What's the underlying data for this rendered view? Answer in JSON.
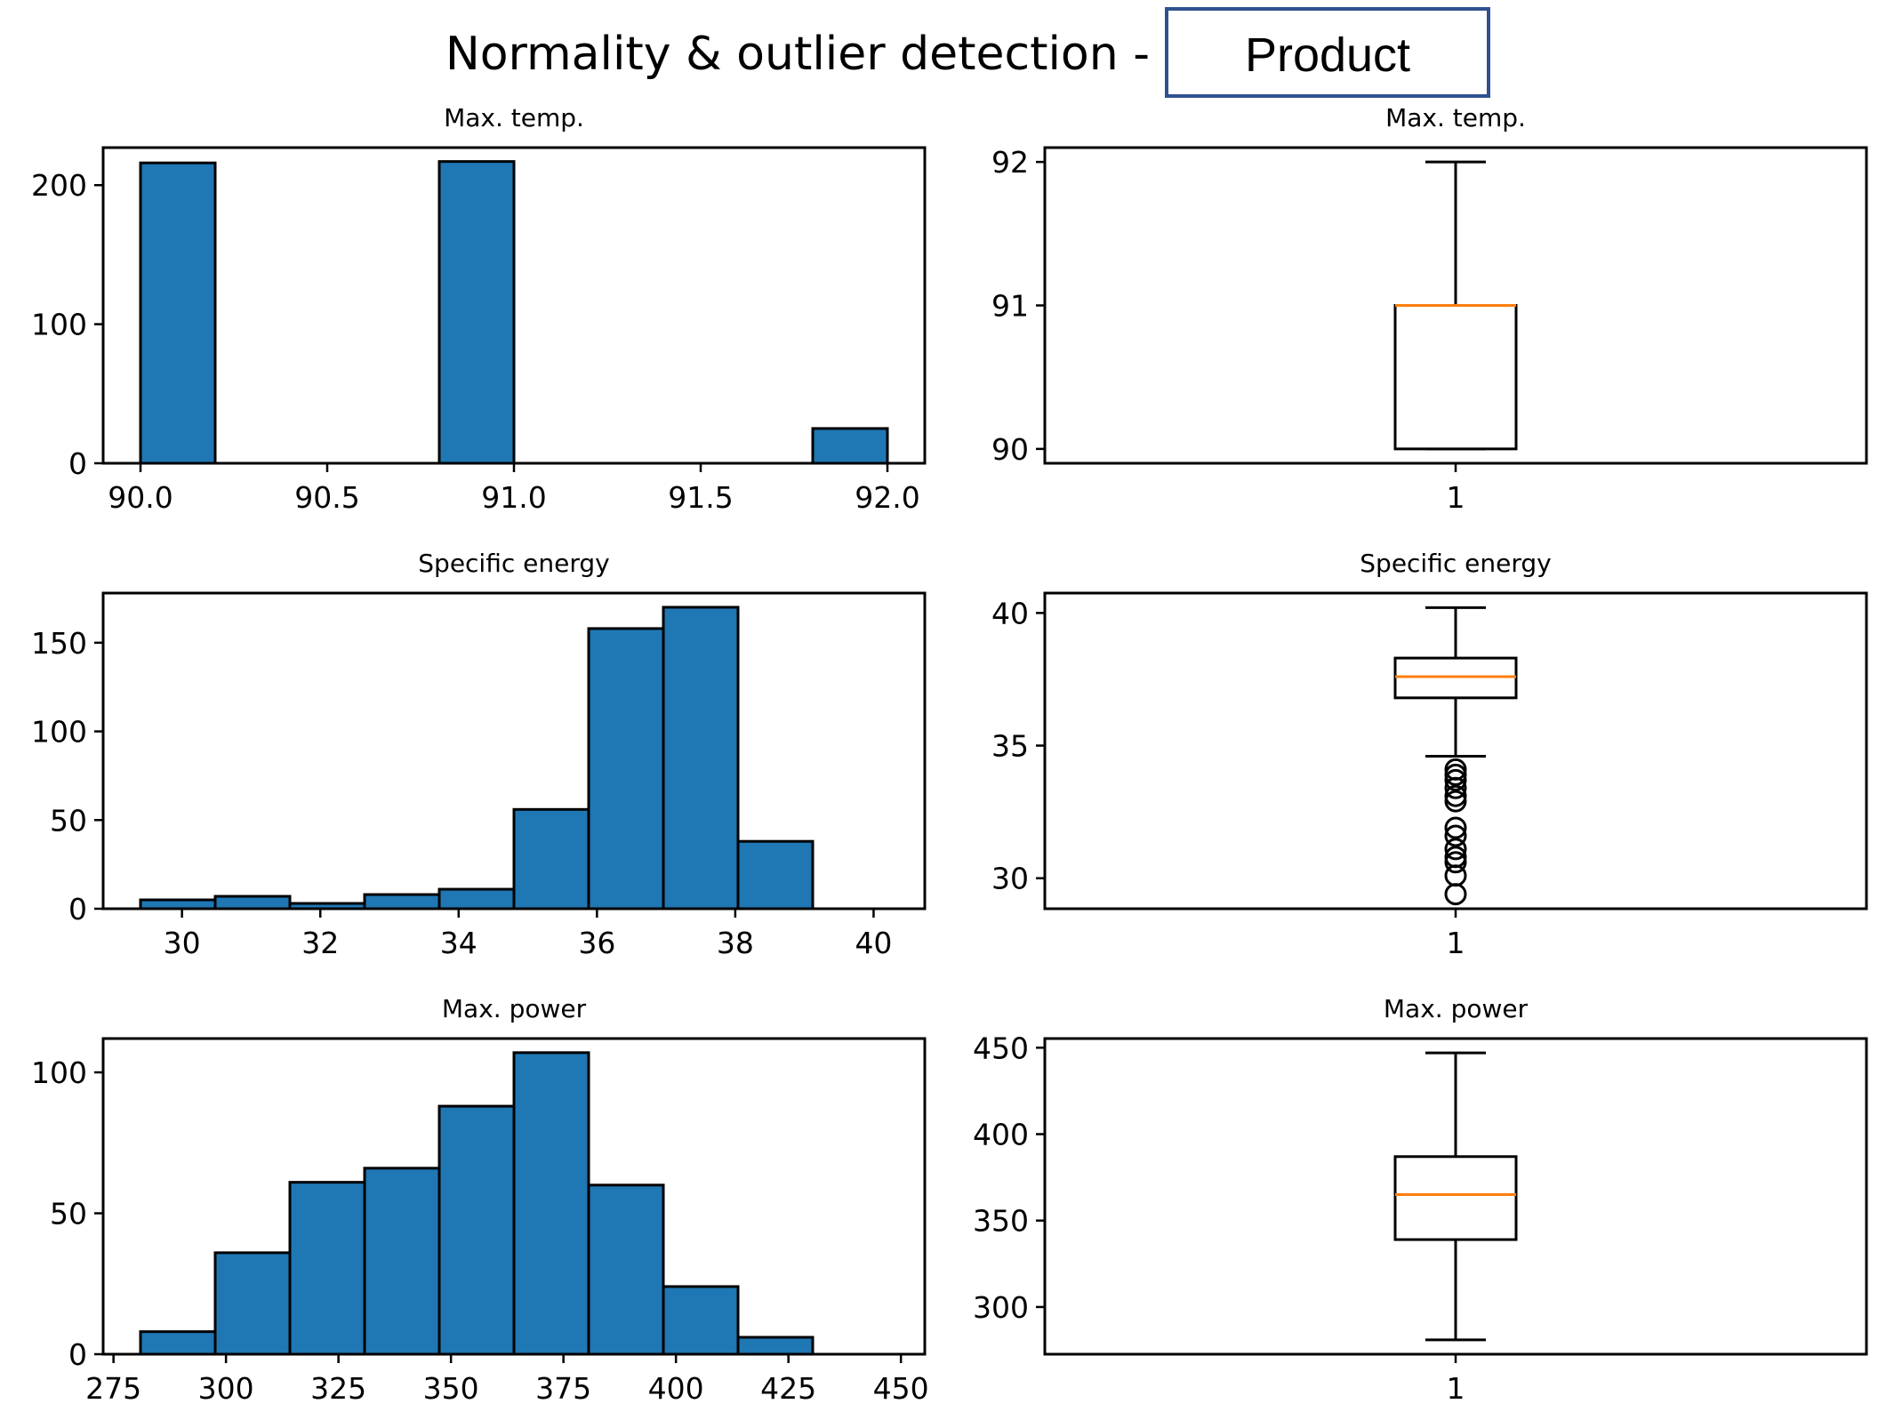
{
  "figure": {
    "title_prefix": "Normality & outlier detection -",
    "title_box": "Product",
    "title_box_border": "#2f528f"
  },
  "colors": {
    "bar_fill": "#1f77b4",
    "median": "#ff7f0e",
    "edge": "#000000"
  },
  "chart_data": [
    {
      "type": "bar",
      "title": "Max. temp.",
      "bin_edges": [
        90.0,
        90.2,
        90.4,
        90.6,
        90.8,
        91.0,
        91.2,
        91.4,
        91.6,
        91.8,
        92.0
      ],
      "counts": [
        216,
        0,
        0,
        0,
        217,
        0,
        0,
        0,
        0,
        25
      ],
      "xlim": [
        89.9,
        92.1
      ],
      "ylim": [
        0,
        227
      ],
      "xticks": [
        90.0,
        90.5,
        91.0,
        91.5,
        92.0
      ],
      "xtick_labels": [
        "90.0",
        "90.5",
        "91.0",
        "91.5",
        "92.0"
      ],
      "yticks": [
        0,
        100,
        200
      ],
      "ytick_labels": [
        "0",
        "100",
        "200"
      ]
    },
    {
      "type": "boxplot",
      "title": "Max. temp.",
      "whisker_low": 90,
      "q1": 90,
      "median": 91,
      "q3": 91,
      "whisker_high": 92,
      "outliers": [],
      "ylim": [
        89.9,
        92.1
      ],
      "yticks": [
        90,
        91,
        92
      ],
      "ytick_labels": [
        "90",
        "91",
        "92"
      ],
      "xtick_labels": [
        "1"
      ]
    },
    {
      "type": "bar",
      "title": "Specific energy",
      "bin_edges": [
        29.4,
        30.48,
        31.56,
        32.64,
        33.72,
        34.8,
        35.88,
        36.96,
        38.04,
        39.12,
        40.2
      ],
      "counts": [
        5,
        7,
        3,
        8,
        11,
        56,
        158,
        170,
        38,
        0
      ],
      "xlim": [
        28.86,
        40.74
      ],
      "ylim": [
        0,
        178
      ],
      "xticks": [
        30,
        32,
        34,
        36,
        38,
        40
      ],
      "xtick_labels": [
        "30",
        "32",
        "34",
        "36",
        "38",
        "40"
      ],
      "yticks": [
        0,
        50,
        100,
        150
      ],
      "ytick_labels": [
        "0",
        "50",
        "100",
        "150"
      ]
    },
    {
      "type": "boxplot",
      "title": "Specific energy",
      "whisker_low": 34.6,
      "q1": 36.8,
      "median": 37.6,
      "q3": 38.3,
      "whisker_high": 40.2,
      "outliers": [
        34.1,
        33.9,
        33.7,
        33.4,
        33.1,
        32.9,
        31.9,
        31.6,
        31.1,
        30.8,
        30.6,
        30.1,
        29.4
      ],
      "ylim": [
        28.85,
        40.75
      ],
      "yticks": [
        30,
        35,
        40
      ],
      "ytick_labels": [
        "30",
        "35",
        "40"
      ],
      "xtick_labels": [
        "1"
      ]
    },
    {
      "type": "bar",
      "title": "Max. power",
      "bin_edges": [
        281,
        297.6,
        314.2,
        330.8,
        347.4,
        364,
        380.6,
        397.2,
        413.8,
        430.4,
        447
      ],
      "counts": [
        8,
        36,
        61,
        66,
        88,
        107,
        60,
        24,
        6,
        0
      ],
      "xlim": [
        272.7,
        455.3
      ],
      "ylim": [
        0,
        112
      ],
      "xticks": [
        275,
        300,
        325,
        350,
        375,
        400,
        425,
        450
      ],
      "xtick_labels": [
        "275",
        "300",
        "325",
        "350",
        "375",
        "400",
        "425",
        "450"
      ],
      "yticks": [
        0,
        50,
        100
      ],
      "ytick_labels": [
        "0",
        "50",
        "100"
      ]
    },
    {
      "type": "boxplot",
      "title": "Max. power",
      "whisker_low": 281,
      "q1": 339,
      "median": 365,
      "q3": 387,
      "whisker_high": 447,
      "outliers": [],
      "ylim": [
        272.7,
        455.3
      ],
      "yticks": [
        300,
        350,
        400,
        450
      ],
      "ytick_labels": [
        "300",
        "350",
        "400",
        "450"
      ],
      "xtick_labels": [
        "1"
      ]
    }
  ]
}
